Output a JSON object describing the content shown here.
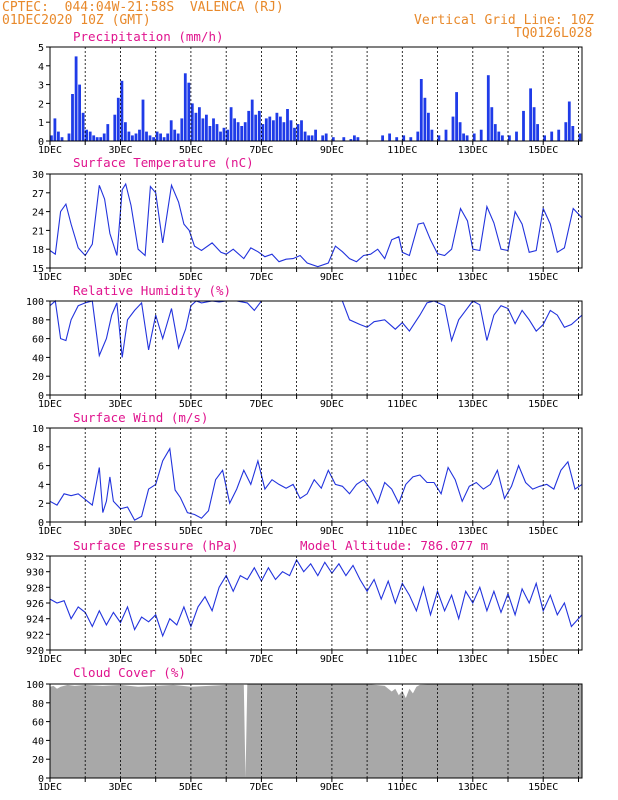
{
  "header": {
    "line1_left": "CPTEC:  044:04W-21:58S  VALENCA (RJ)",
    "line2_left": "01DEC2020 10Z (GMT)",
    "line2_right": "Vertical Grid Line: 10Z",
    "line3_right": "TQ0126L028"
  },
  "colors": {
    "series": "#2233dd",
    "bar": "#1f3be8",
    "cloud": "#a8a8a8",
    "header": "#e8892b",
    "title": "#e0148e"
  },
  "chart_data": [
    {
      "type": "bar",
      "title": "Precipitation (mm/h)",
      "ylim": [
        0,
        5
      ],
      "yticks": [
        0,
        1,
        2,
        3,
        4,
        5
      ],
      "xlim": [
        1,
        16.1
      ],
      "xticks": [
        "1DEC",
        "3DEC",
        "5DEC",
        "7DEC",
        "9DEC",
        "11DEC",
        "13DEC",
        "15DEC"
      ],
      "x": [
        1.0,
        1.1,
        1.2,
        1.3,
        1.5,
        1.6,
        1.7,
        1.8,
        1.9,
        2.0,
        2.1,
        2.2,
        2.3,
        2.4,
        2.5,
        2.6,
        2.8,
        2.9,
        3.0,
        3.1,
        3.2,
        3.3,
        3.4,
        3.5,
        3.6,
        3.7,
        3.8,
        3.9,
        4.0,
        4.1,
        4.2,
        4.3,
        4.4,
        4.5,
        4.6,
        4.7,
        4.8,
        4.9,
        5.0,
        5.1,
        5.2,
        5.3,
        5.4,
        5.5,
        5.6,
        5.7,
        5.8,
        5.9,
        6.0,
        6.1,
        6.2,
        6.3,
        6.4,
        6.5,
        6.6,
        6.7,
        6.8,
        6.9,
        7.0,
        7.1,
        7.2,
        7.3,
        7.4,
        7.5,
        7.6,
        7.7,
        7.8,
        7.9,
        8.0,
        8.1,
        8.2,
        8.3,
        8.4,
        8.5,
        8.7,
        8.8,
        9.0,
        9.3,
        9.5,
        9.6,
        9.7,
        10.4,
        10.6,
        10.8,
        11.0,
        11.2,
        11.4,
        11.5,
        11.6,
        11.7,
        11.8,
        12.0,
        12.2,
        12.4,
        12.5,
        12.6,
        12.7,
        12.8,
        13.0,
        13.2,
        13.4,
        13.5,
        13.6,
        13.7,
        13.8,
        14.0,
        14.2,
        14.4,
        14.6,
        14.7,
        14.8,
        15.0,
        15.2,
        15.4,
        15.6,
        15.7,
        15.8,
        16.0
      ],
      "values": [
        0.3,
        1.2,
        0.5,
        0.2,
        0.4,
        2.5,
        4.5,
        3.0,
        1.5,
        0.6,
        0.5,
        0.3,
        0.2,
        0.2,
        0.4,
        0.9,
        1.4,
        2.3,
        3.2,
        1.0,
        0.5,
        0.3,
        0.4,
        0.6,
        2.2,
        0.5,
        0.3,
        0.2,
        0.5,
        0.4,
        0.2,
        0.4,
        1.1,
        0.6,
        0.4,
        1.2,
        3.6,
        3.1,
        2.0,
        1.5,
        1.8,
        1.2,
        1.4,
        0.8,
        1.2,
        0.9,
        0.5,
        0.7,
        0.6,
        1.8,
        1.2,
        1.0,
        0.8,
        1.0,
        1.6,
        2.2,
        1.4,
        1.6,
        0.9,
        1.2,
        1.3,
        1.1,
        1.5,
        1.3,
        1.0,
        1.7,
        1.1,
        0.7,
        0.9,
        1.1,
        0.5,
        0.3,
        0.3,
        0.6,
        0.3,
        0.4,
        0.2,
        0.2,
        0.1,
        0.3,
        0.2,
        0.3,
        0.4,
        0.2,
        0.3,
        0.2,
        0.5,
        3.3,
        2.3,
        1.5,
        0.6,
        0.3,
        0.6,
        1.3,
        2.6,
        1.0,
        0.4,
        0.3,
        0.4,
        0.6,
        3.5,
        1.8,
        0.9,
        0.5,
        0.3,
        0.3,
        0.5,
        1.6,
        2.8,
        1.8,
        0.9,
        0.3,
        0.5,
        0.6,
        1.0,
        2.1,
        0.8,
        0.4
      ]
    },
    {
      "type": "line",
      "title": "Surface Temperature (nC)",
      "ylim": [
        15,
        30
      ],
      "yticks": [
        15,
        18,
        21,
        24,
        27,
        30
      ],
      "xlim": [
        1,
        16.1
      ],
      "xticks": [
        "1DEC",
        "3DEC",
        "5DEC",
        "7DEC",
        "9DEC",
        "11DEC",
        "13DEC",
        "15DEC"
      ],
      "x": [
        1.0,
        1.15,
        1.3,
        1.45,
        1.6,
        1.8,
        2.0,
        2.2,
        2.4,
        2.55,
        2.7,
        2.9,
        3.05,
        3.15,
        3.3,
        3.5,
        3.7,
        3.85,
        4.0,
        4.2,
        4.45,
        4.65,
        4.8,
        4.95,
        5.1,
        5.3,
        5.6,
        5.85,
        6.0,
        6.2,
        6.5,
        6.7,
        6.9,
        7.1,
        7.3,
        7.5,
        7.7,
        7.9,
        8.1,
        8.3,
        8.6,
        8.9,
        9.1,
        9.3,
        9.5,
        9.7,
        9.9,
        10.1,
        10.3,
        10.5,
        10.7,
        10.9,
        11.0,
        11.2,
        11.45,
        11.6,
        11.8,
        12.0,
        12.2,
        12.4,
        12.65,
        12.85,
        13.0,
        13.2,
        13.4,
        13.6,
        13.8,
        14.0,
        14.2,
        14.4,
        14.6,
        14.8,
        15.0,
        15.2,
        15.4,
        15.6,
        15.85,
        16.1
      ],
      "values": [
        17.8,
        17.2,
        24.0,
        25.2,
        22.0,
        18.2,
        17.0,
        18.8,
        28.2,
        26.0,
        20.5,
        17.0,
        27.5,
        28.4,
        25.0,
        18.0,
        17.0,
        28.0,
        27.0,
        19.0,
        28.2,
        25.5,
        22.0,
        21.0,
        18.5,
        17.8,
        19.0,
        17.5,
        17.2,
        18.0,
        16.5,
        18.2,
        17.6,
        16.8,
        17.2,
        16.0,
        16.4,
        16.5,
        17.0,
        15.8,
        15.2,
        15.8,
        18.5,
        17.6,
        16.5,
        16.0,
        17.0,
        17.2,
        18.0,
        16.5,
        19.5,
        20.0,
        17.5,
        17.0,
        22.0,
        22.2,
        19.5,
        17.3,
        17.0,
        18.0,
        24.5,
        22.5,
        18.0,
        17.8,
        24.8,
        22.2,
        18.0,
        17.8,
        24.0,
        22.0,
        17.5,
        17.8,
        24.5,
        22.0,
        17.5,
        18.2,
        24.5,
        23.0
      ]
    },
    {
      "type": "line",
      "title": "Relative Humidity (%)",
      "ylim": [
        0,
        100
      ],
      "yticks": [
        0,
        20,
        40,
        60,
        80,
        100
      ],
      "xlim": [
        1,
        16.1
      ],
      "xticks": [
        "1DEC",
        "3DEC",
        "5DEC",
        "7DEC",
        "9DEC",
        "11DEC",
        "13DEC",
        "15DEC"
      ],
      "x": [
        1.0,
        1.15,
        1.3,
        1.45,
        1.6,
        1.8,
        2.0,
        2.2,
        2.4,
        2.6,
        2.75,
        2.9,
        3.05,
        3.2,
        3.4,
        3.6,
        3.8,
        4.0,
        4.2,
        4.45,
        4.65,
        4.85,
        5.0,
        5.15,
        5.3,
        5.6,
        5.8,
        6.0,
        6.3,
        6.6,
        6.8,
        7.0,
        7.5,
        8.0,
        8.5,
        9.0,
        9.3,
        9.5,
        9.8,
        10.0,
        10.2,
        10.5,
        10.8,
        11.0,
        11.2,
        11.5,
        11.7,
        11.9,
        12.2,
        12.4,
        12.6,
        12.8,
        13.0,
        13.2,
        13.4,
        13.6,
        13.8,
        14.0,
        14.2,
        14.4,
        14.6,
        14.8,
        15.0,
        15.2,
        15.4,
        15.6,
        15.8,
        16.1
      ],
      "values": [
        95,
        100,
        60,
        58,
        80,
        95,
        98,
        100,
        42,
        60,
        85,
        98,
        40,
        80,
        90,
        98,
        48,
        85,
        60,
        92,
        50,
        70,
        95,
        100,
        98,
        100,
        99,
        100,
        100,
        98,
        90,
        100,
        100,
        100,
        100,
        100,
        100,
        80,
        75,
        72,
        78,
        80,
        70,
        77,
        68,
        85,
        98,
        100,
        95,
        58,
        80,
        90,
        100,
        96,
        58,
        85,
        95,
        92,
        76,
        90,
        80,
        68,
        75,
        90,
        85,
        72,
        75,
        85
      ]
    },
    {
      "type": "line",
      "title": "Surface Wind (m/s)",
      "ylim": [
        0,
        10
      ],
      "yticks": [
        0,
        2,
        4,
        6,
        8,
        10
      ],
      "xlim": [
        1,
        16.1
      ],
      "xticks": [
        "1DEC",
        "3DEC",
        "5DEC",
        "7DEC",
        "9DEC",
        "11DEC",
        "13DEC",
        "15DEC"
      ],
      "x": [
        1.0,
        1.2,
        1.4,
        1.6,
        1.8,
        2.0,
        2.2,
        2.4,
        2.5,
        2.6,
        2.7,
        2.8,
        3.0,
        3.2,
        3.4,
        3.6,
        3.8,
        4.0,
        4.2,
        4.4,
        4.55,
        4.7,
        4.9,
        5.1,
        5.3,
        5.5,
        5.7,
        5.9,
        6.1,
        6.3,
        6.5,
        6.7,
        6.9,
        7.1,
        7.3,
        7.5,
        7.7,
        7.9,
        8.1,
        8.3,
        8.5,
        8.7,
        8.9,
        9.1,
        9.3,
        9.5,
        9.7,
        9.9,
        10.1,
        10.3,
        10.5,
        10.7,
        10.9,
        11.1,
        11.3,
        11.5,
        11.7,
        11.9,
        12.1,
        12.3,
        12.5,
        12.7,
        12.9,
        13.1,
        13.3,
        13.5,
        13.7,
        13.9,
        14.1,
        14.3,
        14.5,
        14.7,
        14.9,
        15.1,
        15.3,
        15.5,
        15.7,
        15.9,
        16.1
      ],
      "values": [
        2.2,
        1.8,
        3.0,
        2.8,
        3.0,
        2.4,
        1.8,
        5.8,
        1.0,
        2.2,
        4.8,
        2.2,
        1.4,
        1.6,
        0.2,
        0.6,
        3.5,
        4.0,
        6.5,
        7.8,
        3.4,
        2.6,
        1.0,
        0.8,
        0.4,
        1.2,
        4.5,
        5.5,
        2.0,
        3.5,
        5.5,
        4.0,
        6.5,
        3.5,
        4.5,
        4.0,
        3.6,
        4.0,
        2.5,
        3.0,
        4.5,
        3.6,
        5.5,
        4.0,
        3.8,
        3.0,
        4.0,
        4.5,
        3.5,
        2.0,
        4.2,
        3.5,
        2.0,
        4.0,
        4.8,
        5.0,
        4.2,
        4.2,
        3.0,
        5.8,
        4.5,
        2.2,
        3.8,
        4.2,
        3.5,
        4.0,
        5.5,
        2.5,
        3.8,
        6.0,
        4.2,
        3.5,
        3.8,
        4.0,
        3.5,
        5.5,
        6.4,
        3.5,
        4.0
      ]
    },
    {
      "type": "line",
      "title": "Surface Pressure (hPa)",
      "annotation": "Model Altitude: 786.077 m",
      "ylim": [
        920,
        932
      ],
      "yticks": [
        920,
        922,
        924,
        926,
        928,
        930,
        932
      ],
      "xlim": [
        1,
        16.1
      ],
      "xticks": [
        "1DEC",
        "3DEC",
        "5DEC",
        "7DEC",
        "9DEC",
        "11DEC",
        "13DEC",
        "15DEC"
      ],
      "x": [
        1.0,
        1.2,
        1.4,
        1.6,
        1.8,
        2.0,
        2.2,
        2.4,
        2.6,
        2.8,
        3.0,
        3.2,
        3.4,
        3.6,
        3.8,
        4.0,
        4.2,
        4.4,
        4.6,
        4.8,
        5.0,
        5.2,
        5.4,
        5.6,
        5.8,
        6.0,
        6.2,
        6.4,
        6.6,
        6.8,
        7.0,
        7.2,
        7.4,
        7.6,
        7.8,
        8.0,
        8.2,
        8.4,
        8.6,
        8.8,
        9.0,
        9.2,
        9.4,
        9.6,
        9.8,
        10.0,
        10.2,
        10.4,
        10.6,
        10.8,
        11.0,
        11.2,
        11.4,
        11.6,
        11.8,
        12.0,
        12.2,
        12.4,
        12.6,
        12.8,
        13.0,
        13.2,
        13.4,
        13.6,
        13.8,
        14.0,
        14.2,
        14.4,
        14.6,
        14.8,
        15.0,
        15.2,
        15.4,
        15.6,
        15.8,
        16.1
      ],
      "values": [
        926.5,
        926.0,
        926.3,
        924.0,
        925.5,
        924.8,
        923.0,
        925.0,
        923.2,
        924.8,
        923.5,
        925.5,
        922.6,
        924.2,
        923.6,
        924.5,
        921.8,
        924.0,
        923.2,
        925.5,
        923.0,
        925.5,
        926.8,
        925.0,
        928.0,
        929.5,
        927.5,
        929.5,
        929.0,
        930.5,
        928.8,
        930.5,
        929.0,
        930.0,
        929.5,
        931.5,
        930.0,
        931.0,
        929.5,
        931.2,
        929.8,
        931.0,
        929.5,
        930.8,
        929.0,
        927.5,
        929.0,
        926.5,
        928.8,
        926.0,
        928.5,
        927.0,
        925.0,
        928.0,
        924.5,
        927.5,
        925.0,
        927.0,
        924.0,
        927.5,
        926.0,
        928.0,
        925.0,
        927.5,
        924.8,
        927.2,
        924.5,
        927.8,
        926.0,
        928.5,
        925.0,
        927.0,
        924.5,
        926.0,
        923.0,
        924.5
      ]
    },
    {
      "type": "area",
      "title": "Cloud Cover (%)",
      "ylim": [
        0,
        100
      ],
      "yticks": [
        0,
        20,
        40,
        60,
        80,
        100
      ],
      "xlim": [
        1,
        16.1
      ],
      "xticks": [
        "1DEC",
        "3DEC",
        "5DEC",
        "7DEC",
        "9DEC",
        "11DEC",
        "13DEC",
        "15DEC"
      ],
      "x": [
        1.0,
        1.1,
        1.2,
        1.3,
        1.5,
        1.7,
        2.0,
        2.5,
        3.0,
        3.5,
        4.0,
        4.5,
        5.0,
        5.5,
        6.0,
        6.5,
        6.55,
        6.6,
        6.7,
        7.0,
        8.0,
        9.0,
        10.0,
        10.5,
        10.7,
        10.8,
        10.9,
        11.0,
        11.1,
        11.2,
        11.3,
        11.4,
        11.5,
        12.0,
        13.0,
        14.0,
        15.0,
        16.1
      ],
      "values": [
        97,
        98,
        95,
        97,
        99,
        98,
        99,
        98,
        99,
        97,
        98,
        99,
        97,
        98,
        99,
        99,
        0,
        100,
        100,
        100,
        100,
        100,
        100,
        98,
        92,
        95,
        88,
        93,
        85,
        95,
        90,
        97,
        99,
        100,
        100,
        100,
        100,
        100
      ]
    }
  ],
  "panel_titles": {
    "precip": "Precipitation (mm/h)",
    "temp": "Surface Temperature (nC)",
    "rh": "Relative Humidity (%)",
    "wind": "Surface Wind (m/s)",
    "pres": "Surface Pressure (hPa)",
    "pres_note": "Model Altitude: 786.077 m",
    "cloud": "Cloud Cover (%)"
  }
}
